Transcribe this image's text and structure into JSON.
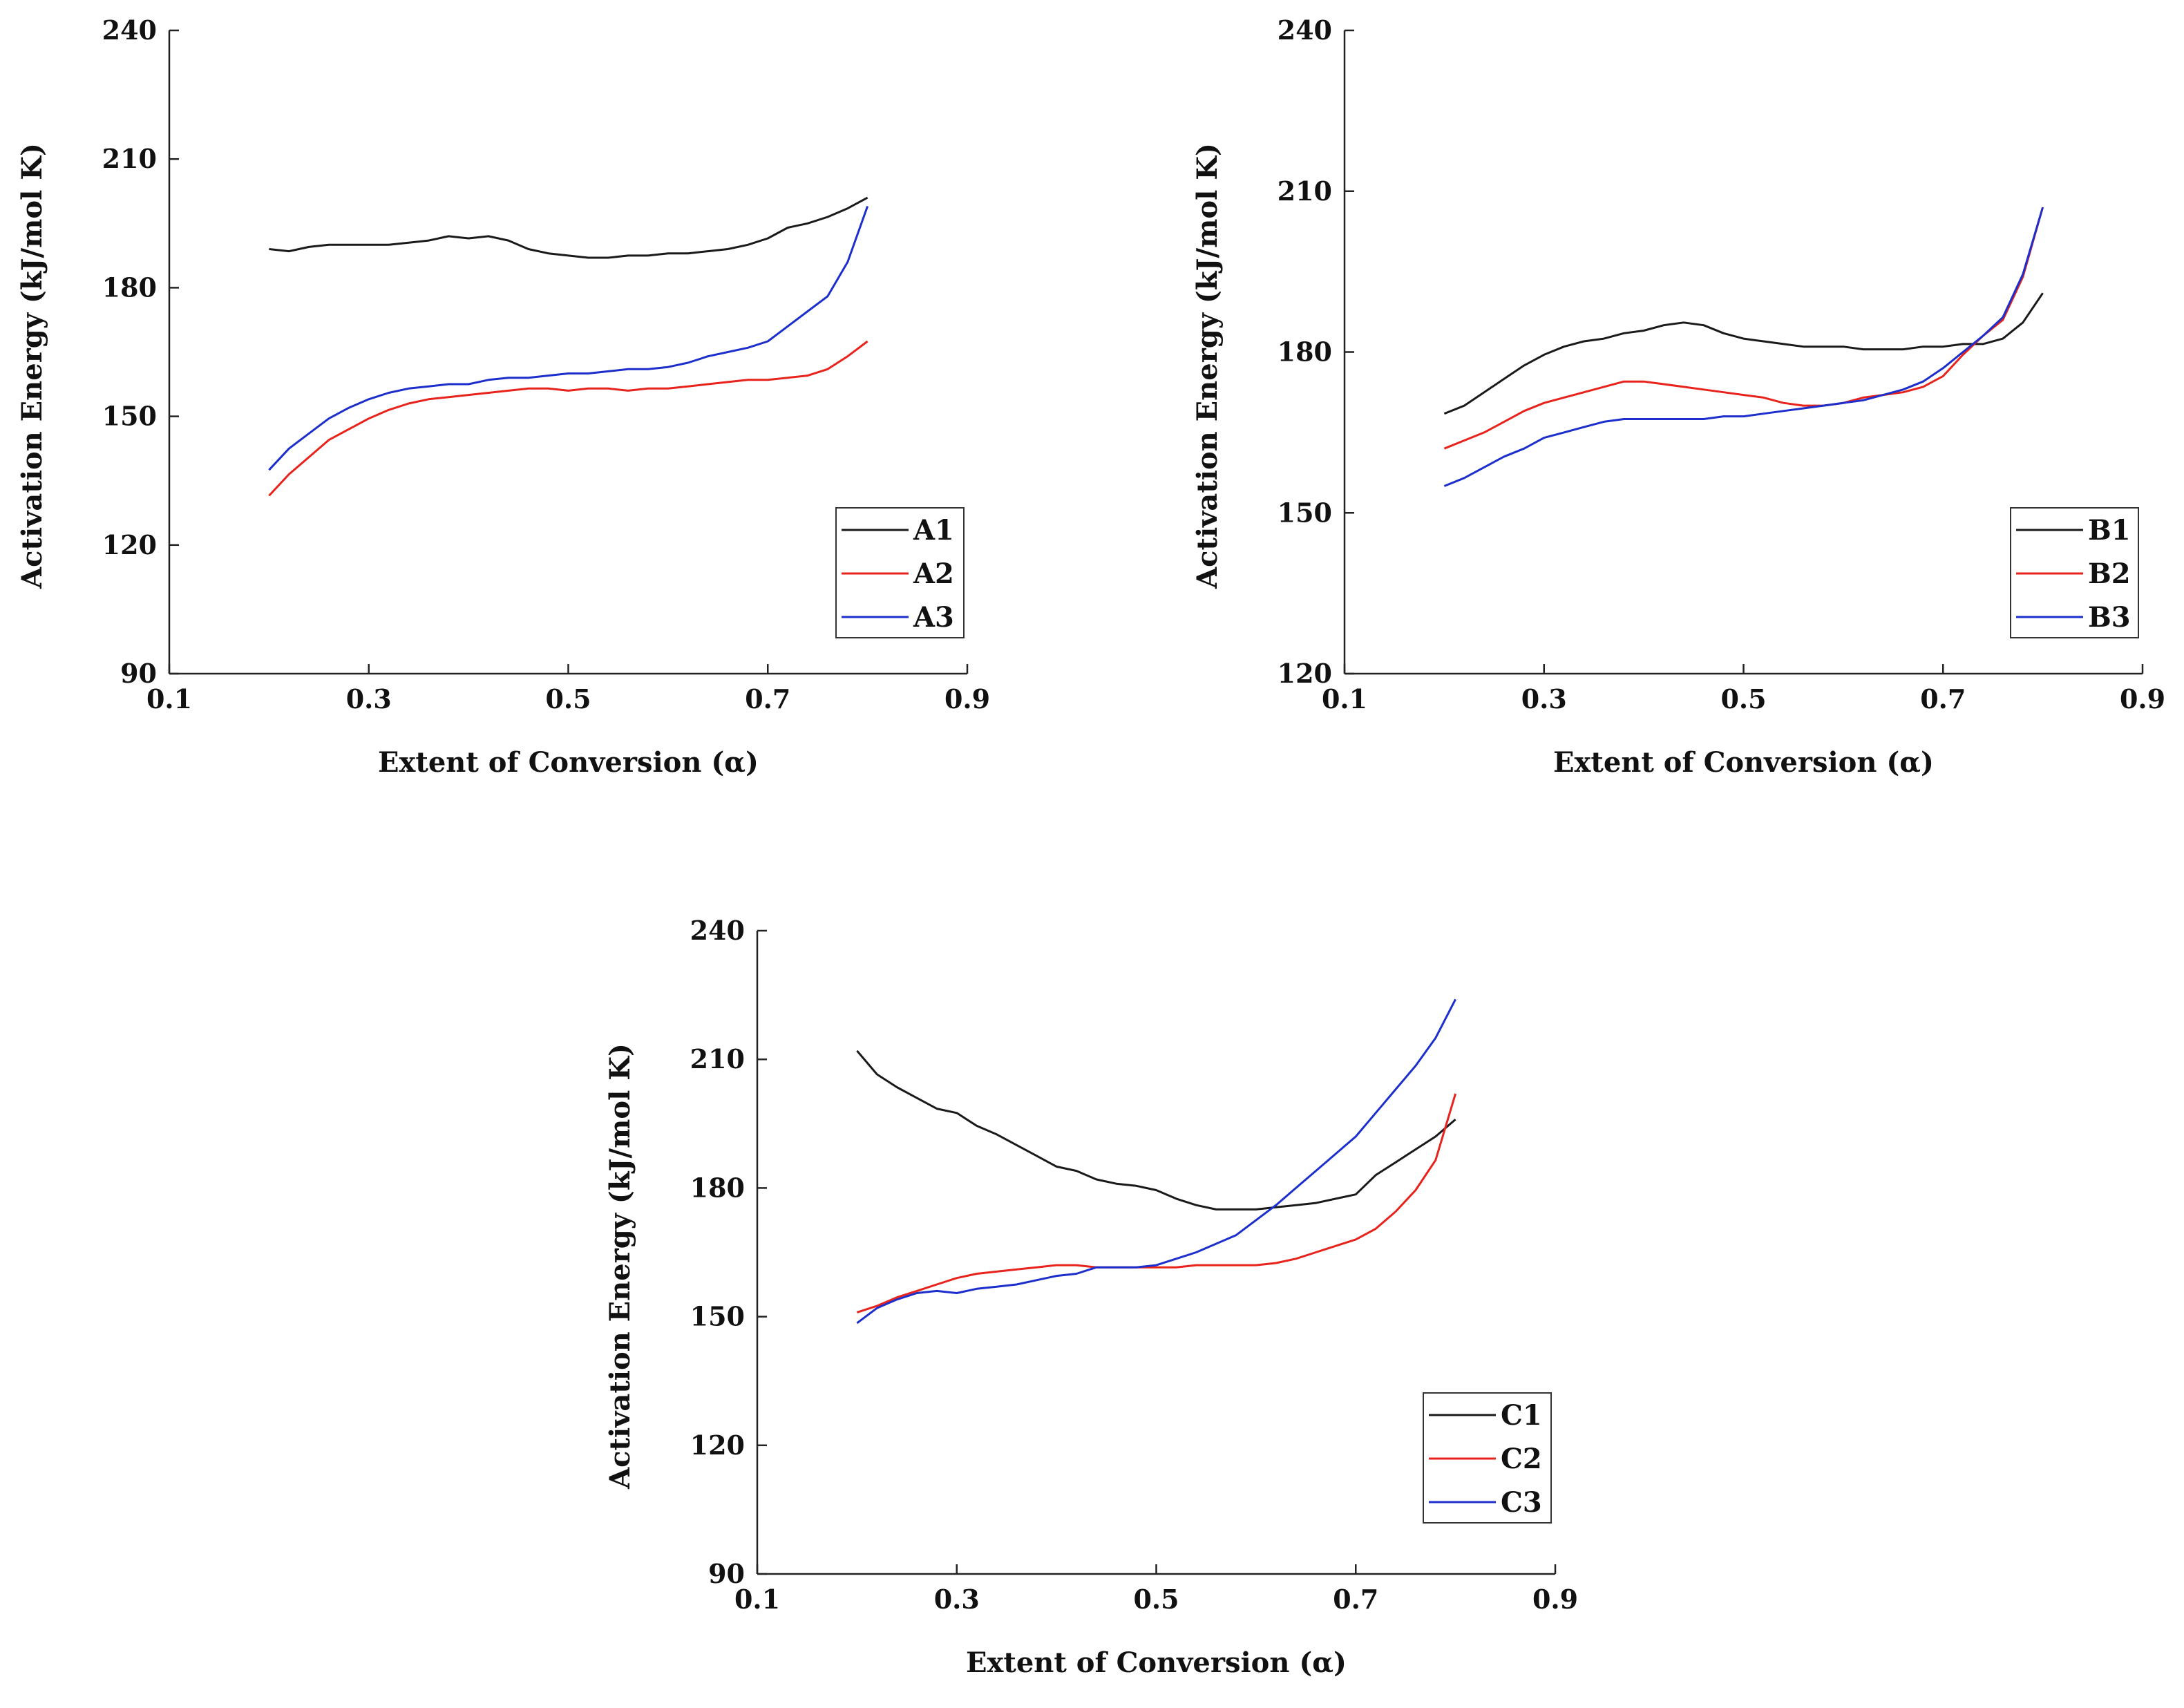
{
  "chart_data": [
    {
      "id": "A",
      "type": "line",
      "title": "",
      "xlabel": "Extent of Conversion (α)",
      "ylabel": "Activation Energy (kJ/mol K)",
      "xlim": [
        0.1,
        0.9
      ],
      "ylim": [
        90,
        240
      ],
      "xticks": [
        "0.1",
        "0.3",
        "0.5",
        "0.7",
        "0.9"
      ],
      "yticks": [
        "90",
        "120",
        "150",
        "180",
        "210",
        "240"
      ],
      "grid": false,
      "legend_position": "bottom-right",
      "series": [
        {
          "name": "A1",
          "color": "#1a1a1a",
          "x": [
            0.2,
            0.22,
            0.24,
            0.26,
            0.28,
            0.3,
            0.32,
            0.34,
            0.36,
            0.38,
            0.4,
            0.42,
            0.44,
            0.46,
            0.48,
            0.5,
            0.52,
            0.54,
            0.56,
            0.58,
            0.6,
            0.62,
            0.64,
            0.66,
            0.68,
            0.7,
            0.72,
            0.74,
            0.76,
            0.78,
            0.8
          ],
          "y": [
            189,
            188.5,
            189.5,
            190,
            190,
            190,
            190,
            190.5,
            191,
            192,
            191.5,
            192,
            191,
            189,
            188,
            187.5,
            187,
            187,
            187.5,
            187.5,
            188,
            188,
            188.5,
            189,
            190,
            191.5,
            194,
            195,
            196.5,
            198.5,
            201
          ]
        },
        {
          "name": "A2",
          "color": "#e8231c",
          "x": [
            0.2,
            0.22,
            0.24,
            0.26,
            0.28,
            0.3,
            0.32,
            0.34,
            0.36,
            0.38,
            0.4,
            0.42,
            0.44,
            0.46,
            0.48,
            0.5,
            0.52,
            0.54,
            0.56,
            0.58,
            0.6,
            0.62,
            0.64,
            0.66,
            0.68,
            0.7,
            0.72,
            0.74,
            0.76,
            0.78,
            0.8
          ],
          "y": [
            131.5,
            136.5,
            140.5,
            144.5,
            147,
            149.5,
            151.5,
            153,
            154,
            154.5,
            155,
            155.5,
            156,
            156.5,
            156.5,
            156,
            156.5,
            156.5,
            156,
            156.5,
            156.5,
            157,
            157.5,
            158,
            158.5,
            158.5,
            159,
            159.5,
            161,
            164,
            167.5
          ]
        },
        {
          "name": "A3",
          "color": "#1c2fcc",
          "x": [
            0.2,
            0.22,
            0.24,
            0.26,
            0.28,
            0.3,
            0.32,
            0.34,
            0.36,
            0.38,
            0.4,
            0.42,
            0.44,
            0.46,
            0.48,
            0.5,
            0.52,
            0.54,
            0.56,
            0.58,
            0.6,
            0.62,
            0.64,
            0.66,
            0.68,
            0.7,
            0.72,
            0.74,
            0.76,
            0.78,
            0.8
          ],
          "y": [
            137.5,
            142.5,
            146,
            149.5,
            152,
            154,
            155.5,
            156.5,
            157,
            157.5,
            157.5,
            158.5,
            159,
            159,
            159.5,
            160,
            160,
            160.5,
            161,
            161,
            161.5,
            162.5,
            164,
            165,
            166,
            167.5,
            171,
            174.5,
            178,
            186,
            199
          ]
        }
      ]
    },
    {
      "id": "B",
      "type": "line",
      "title": "",
      "xlabel": "Extent of Conversion (α)",
      "ylabel": "Activation Energy (kJ/mol K)",
      "xlim": [
        0.1,
        0.9
      ],
      "ylim": [
        120,
        240
      ],
      "xticks": [
        "0.1",
        "0.3",
        "0.5",
        "0.7",
        "0.9"
      ],
      "yticks": [
        "120",
        "150",
        "180",
        "210",
        "240"
      ],
      "grid": false,
      "legend_position": "bottom-right",
      "series": [
        {
          "name": "B1",
          "color": "#1a1a1a",
          "x": [
            0.2,
            0.22,
            0.24,
            0.26,
            0.28,
            0.3,
            0.32,
            0.34,
            0.36,
            0.38,
            0.4,
            0.42,
            0.44,
            0.46,
            0.48,
            0.5,
            0.52,
            0.54,
            0.56,
            0.58,
            0.6,
            0.62,
            0.64,
            0.66,
            0.68,
            0.7,
            0.72,
            0.74,
            0.76,
            0.78,
            0.8
          ],
          "y": [
            168.5,
            170,
            172.5,
            175,
            177.5,
            179.5,
            181,
            182,
            182.5,
            183.5,
            184,
            185,
            185.5,
            185,
            183.5,
            182.5,
            182,
            181.5,
            181,
            181,
            181,
            180.5,
            180.5,
            180.5,
            181,
            181,
            181.5,
            181.5,
            182.5,
            185.5,
            191
          ]
        },
        {
          "name": "B2",
          "color": "#e8231c",
          "x": [
            0.2,
            0.22,
            0.24,
            0.26,
            0.28,
            0.3,
            0.32,
            0.34,
            0.36,
            0.38,
            0.4,
            0.42,
            0.44,
            0.46,
            0.48,
            0.5,
            0.52,
            0.54,
            0.56,
            0.58,
            0.6,
            0.62,
            0.64,
            0.66,
            0.68,
            0.7,
            0.72,
            0.74,
            0.76,
            0.78,
            0.8
          ],
          "y": [
            162,
            163.5,
            165,
            167,
            169,
            170.5,
            171.5,
            172.5,
            173.5,
            174.5,
            174.5,
            174,
            173.5,
            173,
            172.5,
            172,
            171.5,
            170.5,
            170,
            170,
            170.5,
            171.5,
            172,
            172.5,
            173.5,
            175.5,
            179.5,
            183,
            186,
            194,
            207
          ]
        },
        {
          "name": "B3",
          "color": "#1c2fcc",
          "x": [
            0.2,
            0.22,
            0.24,
            0.26,
            0.28,
            0.3,
            0.32,
            0.34,
            0.36,
            0.38,
            0.4,
            0.42,
            0.44,
            0.46,
            0.48,
            0.5,
            0.52,
            0.54,
            0.56,
            0.58,
            0.6,
            0.62,
            0.64,
            0.66,
            0.68,
            0.7,
            0.72,
            0.74,
            0.76,
            0.78,
            0.8
          ],
          "y": [
            155,
            156.5,
            158.5,
            160.5,
            162,
            164,
            165,
            166,
            167,
            167.5,
            167.5,
            167.5,
            167.5,
            167.5,
            168,
            168,
            168.5,
            169,
            169.5,
            170,
            170.5,
            171,
            172,
            173,
            174.5,
            177,
            180,
            183,
            186.5,
            194.5,
            207
          ]
        }
      ]
    },
    {
      "id": "C",
      "type": "line",
      "title": "",
      "xlabel": "Extent of Conversion (α)",
      "ylabel": "Activation Energy (kJ/mol K)",
      "xlim": [
        0.1,
        0.9
      ],
      "ylim": [
        90,
        240
      ],
      "xticks": [
        "0.1",
        "0.3",
        "0.5",
        "0.7",
        "0.9"
      ],
      "yticks": [
        "90",
        "120",
        "150",
        "180",
        "210",
        "240"
      ],
      "grid": false,
      "legend_position": "bottom-right",
      "series": [
        {
          "name": "C1",
          "color": "#1a1a1a",
          "x": [
            0.2,
            0.22,
            0.24,
            0.26,
            0.28,
            0.3,
            0.32,
            0.34,
            0.36,
            0.38,
            0.4,
            0.42,
            0.44,
            0.46,
            0.48,
            0.5,
            0.52,
            0.54,
            0.56,
            0.58,
            0.6,
            0.62,
            0.64,
            0.66,
            0.68,
            0.7,
            0.72,
            0.74,
            0.76,
            0.78,
            0.8
          ],
          "y": [
            212,
            206.5,
            203.5,
            201,
            198.5,
            197.5,
            194.5,
            192.5,
            190,
            187.5,
            185,
            184,
            182,
            181,
            180.5,
            179.5,
            177.5,
            176,
            175,
            175,
            175,
            175.5,
            176,
            176.5,
            177.5,
            178.5,
            183,
            186,
            189,
            192,
            196
          ]
        },
        {
          "name": "C2",
          "color": "#e8231c",
          "x": [
            0.2,
            0.22,
            0.24,
            0.26,
            0.28,
            0.3,
            0.32,
            0.34,
            0.36,
            0.38,
            0.4,
            0.42,
            0.44,
            0.46,
            0.48,
            0.5,
            0.52,
            0.54,
            0.56,
            0.58,
            0.6,
            0.62,
            0.64,
            0.66,
            0.68,
            0.7,
            0.72,
            0.74,
            0.76,
            0.78,
            0.8
          ],
          "y": [
            151,
            152.5,
            154.5,
            156,
            157.5,
            159,
            160,
            160.5,
            161,
            161.5,
            162,
            162,
            161.5,
            161.5,
            161.5,
            161.5,
            161.5,
            162,
            162,
            162,
            162,
            162.5,
            163.5,
            165,
            166.5,
            168,
            170.5,
            174.5,
            179.5,
            186.5,
            202
          ]
        },
        {
          "name": "C3",
          "color": "#1c2fcc",
          "x": [
            0.2,
            0.22,
            0.24,
            0.26,
            0.28,
            0.3,
            0.32,
            0.34,
            0.36,
            0.38,
            0.4,
            0.42,
            0.44,
            0.46,
            0.48,
            0.5,
            0.52,
            0.54,
            0.56,
            0.58,
            0.6,
            0.62,
            0.64,
            0.66,
            0.68,
            0.7,
            0.72,
            0.74,
            0.76,
            0.78,
            0.8
          ],
          "y": [
            148.5,
            152,
            154,
            155.5,
            156,
            155.5,
            156.5,
            157,
            157.5,
            158.5,
            159.5,
            160,
            161.5,
            161.5,
            161.5,
            162,
            163.5,
            165,
            167,
            169,
            172.5,
            176,
            180,
            184,
            188,
            192,
            197.5,
            203,
            208.5,
            215,
            224
          ]
        }
      ]
    }
  ]
}
